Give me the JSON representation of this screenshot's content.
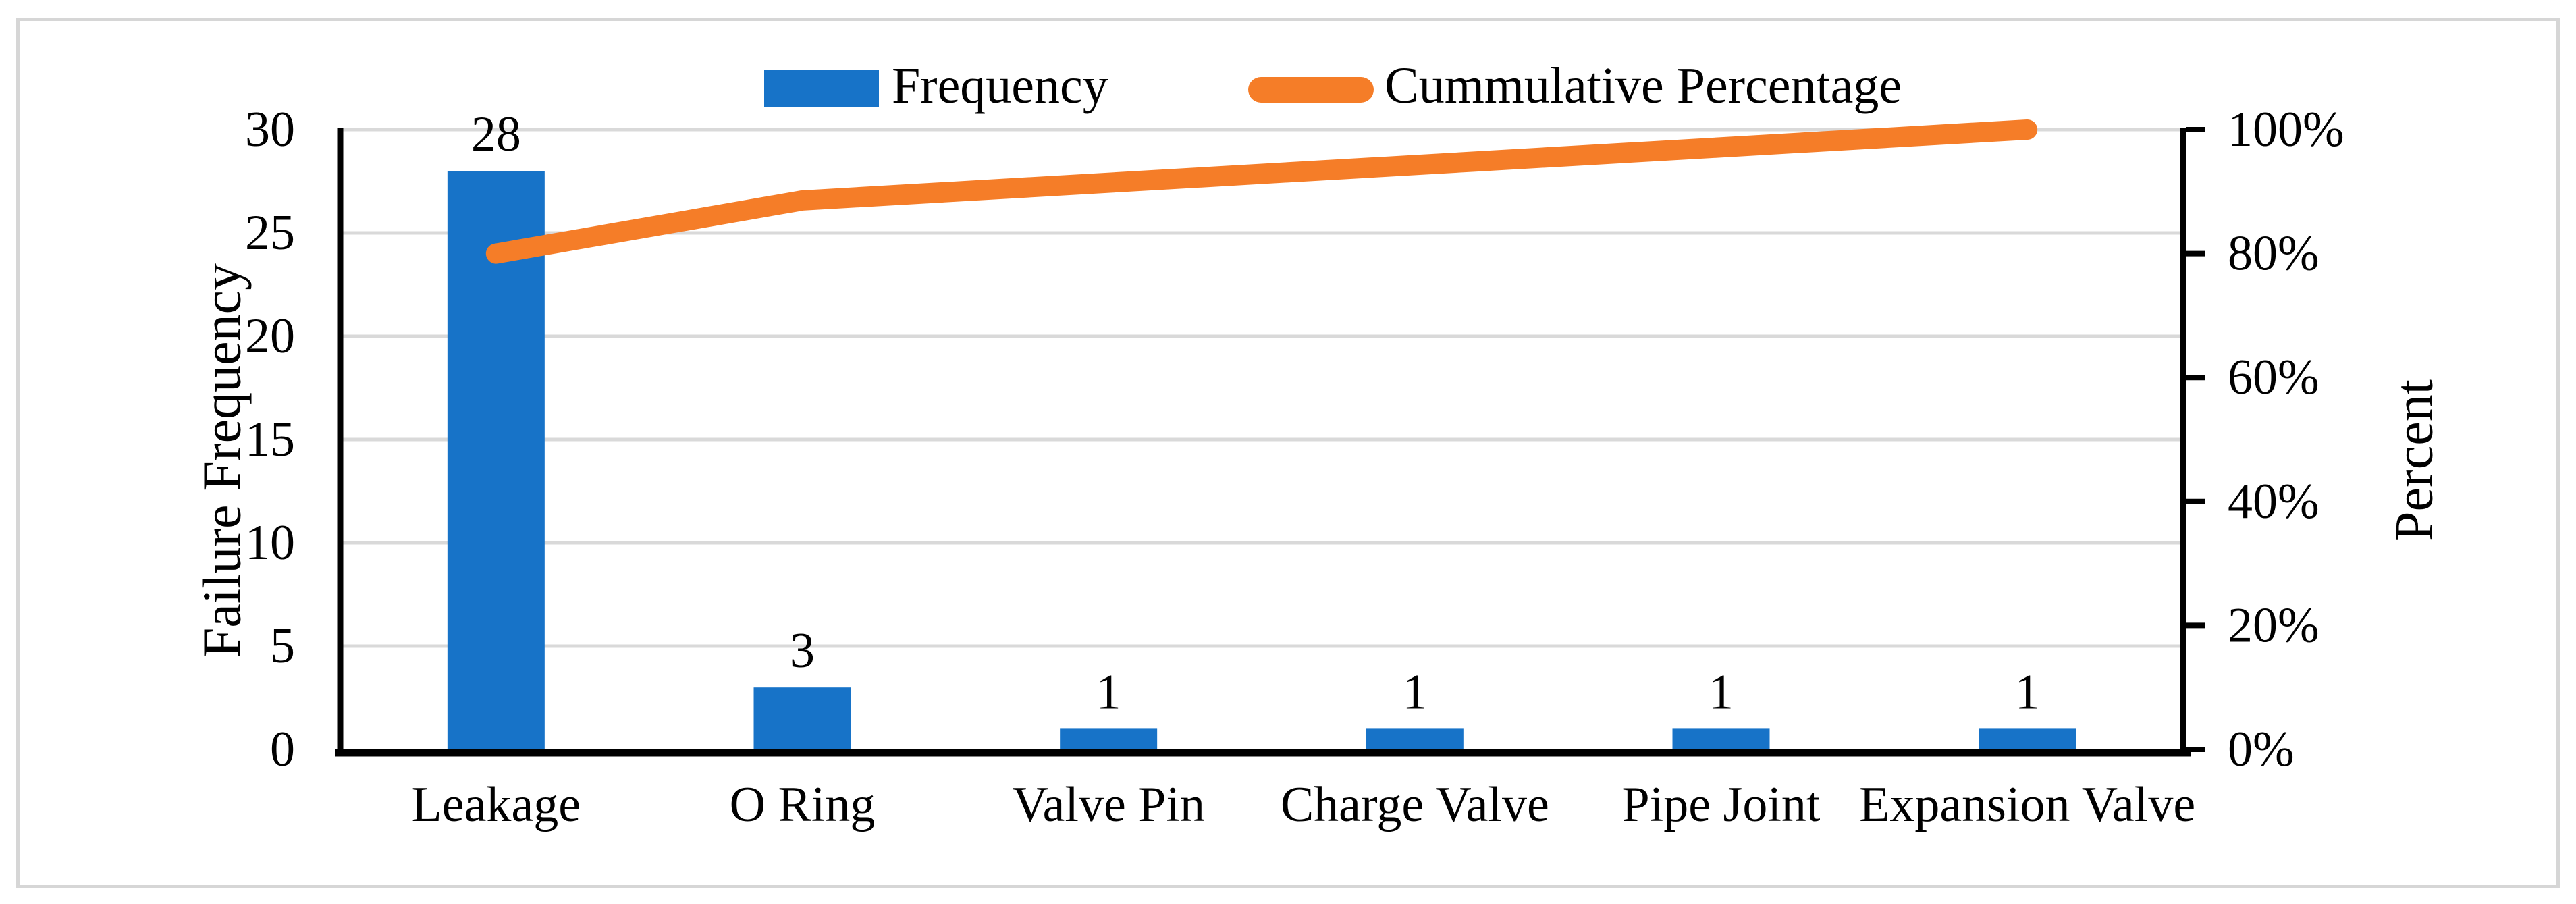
{
  "chart_data": {
    "type": "bar",
    "subtype": "pareto-combo",
    "title": "",
    "categories": [
      "Leakage",
      "O Ring",
      "Valve Pin",
      "Charge Valve",
      "Pipe Joint",
      "Expansion Valve"
    ],
    "series": [
      {
        "name": "Frequency",
        "type": "bar",
        "values": [
          28,
          3,
          1,
          1,
          1,
          1
        ],
        "data_labels": [
          "28",
          "3",
          "1",
          "1",
          "1",
          "1"
        ],
        "color": "#1773C8"
      },
      {
        "name": "Cummulative Percentage",
        "type": "line",
        "values_pct": [
          80,
          88.57,
          91.43,
          94.29,
          97.14,
          100
        ],
        "color": "#F57D28"
      }
    ],
    "left_axis": {
      "title": "Failure Frequency",
      "min": 0,
      "max": 30,
      "tick_labels": [
        "0",
        "5",
        "10",
        "15",
        "20",
        "25",
        "30"
      ],
      "tick_values": [
        0,
        5,
        10,
        15,
        20,
        25,
        30
      ]
    },
    "right_axis": {
      "title": "Percent",
      "min": 0,
      "max": 100,
      "tick_labels": [
        "0%",
        "20%",
        "40%",
        "60%",
        "80%",
        "100%"
      ],
      "tick_values": [
        0,
        20,
        40,
        60,
        80,
        100
      ]
    },
    "legend_position": "top",
    "grid": "horizontal",
    "colors": {
      "gridline": "#D9D9D9",
      "axis_line": "#000000",
      "text": "#000000",
      "frame_border": "#D6D6D6",
      "background": "#FFFFFF"
    }
  },
  "legend": {
    "items": [
      {
        "label": "Frequency",
        "swatch": "bar"
      },
      {
        "label": "Cummulative Percentage",
        "swatch": "line"
      }
    ]
  }
}
